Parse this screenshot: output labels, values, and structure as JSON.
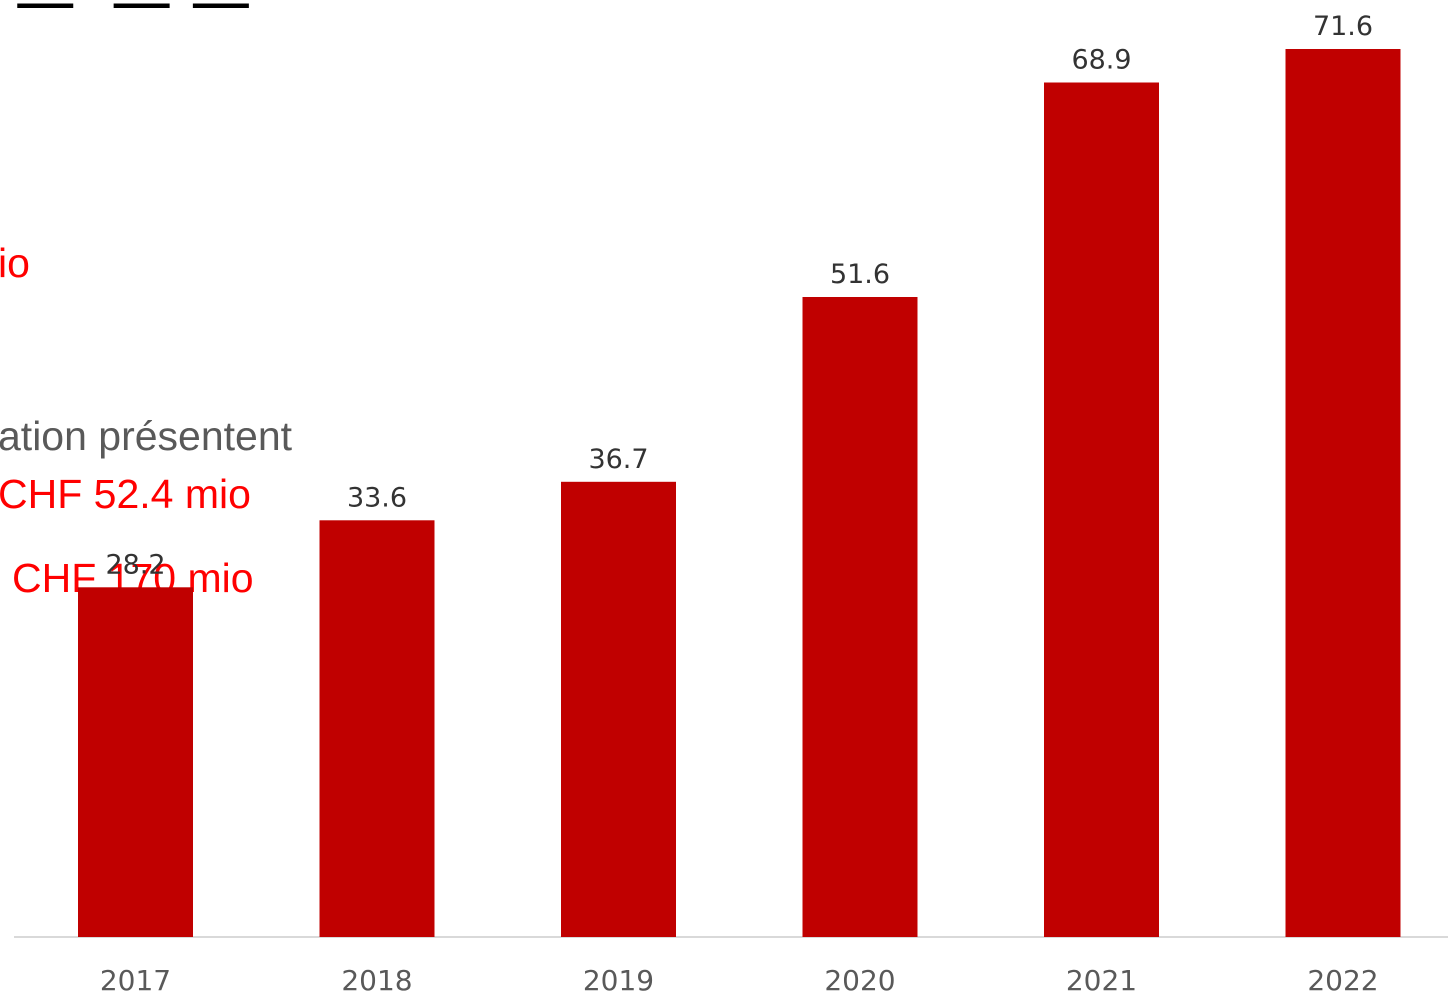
{
  "colors": {
    "bar": "#c00000",
    "accent_text": "#ff0000",
    "body_text": "#595959",
    "axis": "#d9d9d9"
  },
  "slide": {
    "title_fragment": " —  — —",
    "text_fragments": [
      {
        "id": "mio",
        "text": "io",
        "color": "accent"
      },
      {
        "id": "presentent",
        "text": "ation présentent",
        "color": "body"
      },
      {
        "id": "chf-52",
        "text": "CHF 52.4 mio",
        "color": "accent"
      },
      {
        "id": "chf-170",
        "text": "CHF 170 mio",
        "color": "accent"
      }
    ]
  },
  "chart_data": {
    "type": "bar",
    "categories": [
      "2017",
      "2018",
      "2019",
      "2020",
      "2021",
      "2022"
    ],
    "values": [
      28.2,
      33.6,
      36.7,
      51.6,
      68.9,
      71.6
    ],
    "data_labels": [
      "28.2",
      "33.6",
      "36.7",
      "51.6",
      "68.9",
      "71.6"
    ],
    "title": "",
    "xlabel": "",
    "ylabel": "",
    "ylim": [
      0,
      71.6
    ],
    "grid": false,
    "legend": "none"
  }
}
